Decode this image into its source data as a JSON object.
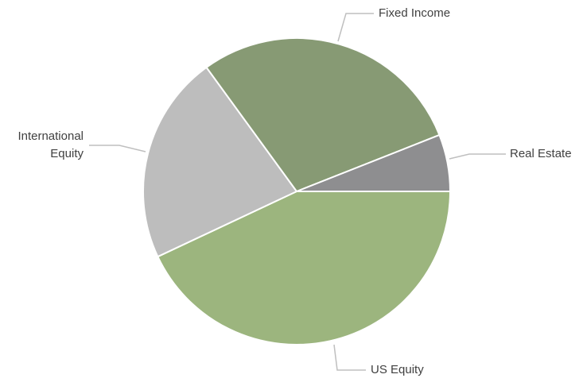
{
  "chart_data": {
    "type": "pie",
    "categories": [
      "US Equity",
      "International Equity",
      "Fixed Income",
      "Real Estate"
    ],
    "values": [
      43,
      22,
      29,
      6
    ],
    "colors": [
      "#9cb57e",
      "#bdbdbd",
      "#879a74",
      "#8e8e90"
    ],
    "start_angle": 0,
    "direction": "clockwise"
  }
}
